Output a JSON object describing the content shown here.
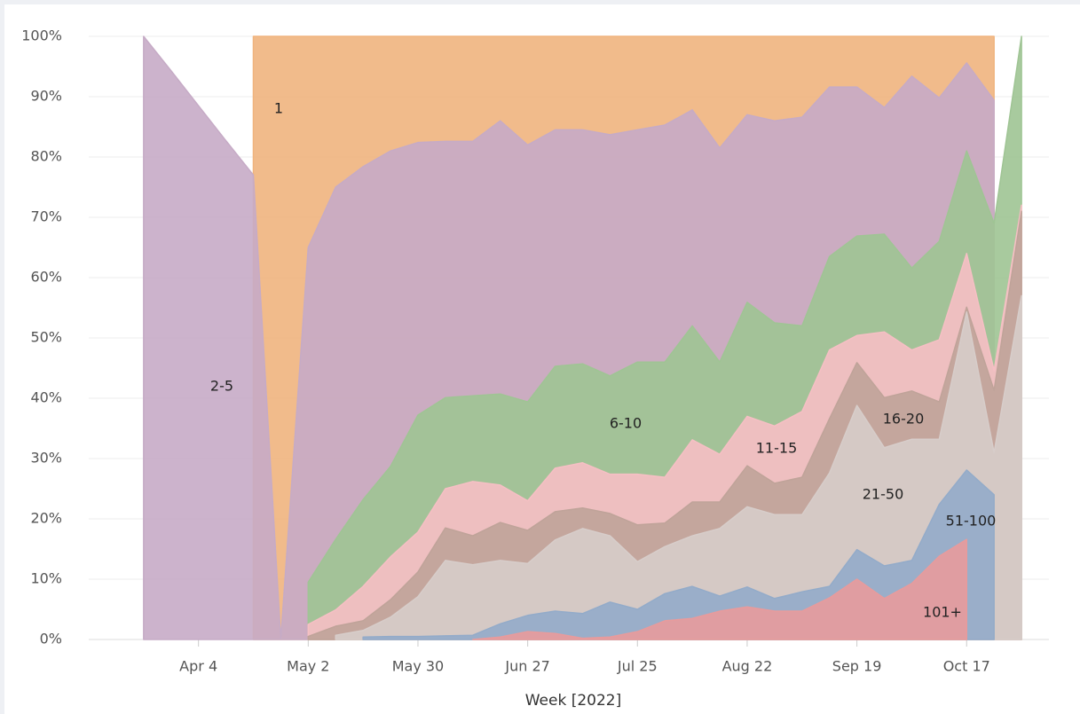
{
  "chart_data": {
    "type": "area",
    "x_label": "Week [2022]",
    "x": [
      "2022-03-21",
      "2022-03-28",
      "2022-04-04",
      "2022-04-11",
      "2022-04-18",
      "2022-04-25",
      "2022-05-02",
      "2022-05-09",
      "2022-05-16",
      "2022-05-23",
      "2022-05-30",
      "2022-06-06",
      "2022-06-13",
      "2022-06-20",
      "2022-06-27",
      "2022-07-04",
      "2022-07-11",
      "2022-07-18",
      "2022-07-25",
      "2022-08-01",
      "2022-08-08",
      "2022-08-15",
      "2022-08-22",
      "2022-08-29",
      "2022-09-05",
      "2022-09-12",
      "2022-09-19",
      "2022-09-26",
      "2022-10-03",
      "2022-10-10",
      "2022-10-17",
      "2022-10-24",
      "2022-10-31"
    ],
    "xlim": [
      "2022-03-07",
      "2022-11-07"
    ],
    "xticks": [
      {
        "value": "2022-04-04",
        "label": "Apr 4"
      },
      {
        "value": "2022-05-02",
        "label": "May 2"
      },
      {
        "value": "2022-05-30",
        "label": "May 30"
      },
      {
        "value": "2022-06-27",
        "label": "Jun 27"
      },
      {
        "value": "2022-07-25",
        "label": "Jul 25"
      },
      {
        "value": "2022-08-22",
        "label": "Aug 22"
      },
      {
        "value": "2022-09-19",
        "label": "Sep 19"
      },
      {
        "value": "2022-10-17",
        "label": "Oct 17"
      }
    ],
    "ylim": [
      0,
      100
    ],
    "yticks": [
      {
        "value": 0,
        "label": "0%"
      },
      {
        "value": 10,
        "label": "10%"
      },
      {
        "value": 20,
        "label": "20%"
      },
      {
        "value": 30,
        "label": "30%"
      },
      {
        "value": 40,
        "label": "40%"
      },
      {
        "value": 50,
        "label": "50%"
      },
      {
        "value": 60,
        "label": "60%"
      },
      {
        "value": 70,
        "label": "70%"
      },
      {
        "value": 80,
        "label": "80%"
      },
      {
        "value": 90,
        "label": "90%"
      },
      {
        "value": 100,
        "label": "100%"
      }
    ],
    "grid": true,
    "series": [
      {
        "name": "1",
        "color": "#f0b47e",
        "values": [
          null,
          null,
          null,
          null,
          100,
          100,
          100,
          100,
          100,
          100,
          100,
          100,
          100,
          100,
          100,
          100,
          100,
          100,
          100,
          100,
          100,
          100,
          100,
          100,
          100,
          100,
          100,
          100,
          100,
          100,
          100,
          100,
          null
        ]
      },
      {
        "name": "2-5",
        "color": "#c6abc6",
        "values": [
          100,
          94.3,
          88.5,
          82.7,
          77,
          0,
          65,
          75,
          78.4,
          81,
          82.4,
          82.6,
          82.6,
          86,
          82,
          84.5,
          84.5,
          83.7,
          84.5,
          85.3,
          87.8,
          81.5,
          87,
          86,
          86.6,
          91.6,
          91.6,
          88.2,
          93.4,
          89.8,
          95.6,
          89.4,
          null
        ]
      },
      {
        "name": "6-10",
        "color": "#9fc494",
        "values": [
          null,
          null,
          null,
          null,
          null,
          null,
          9.5,
          16.6,
          23.2,
          28.7,
          37.2,
          40.1,
          40.4,
          40.7,
          39.4,
          45.3,
          45.7,
          43.7,
          46,
          46,
          52,
          46,
          55.9,
          52.5,
          52,
          63.5,
          66.9,
          67.2,
          61.6,
          66,
          81,
          69,
          100
        ]
      },
      {
        "name": "11-15",
        "color": "#f6bfc4",
        "values": [
          null,
          null,
          null,
          null,
          null,
          null,
          2.5,
          4.9,
          8.8,
          13.7,
          17.8,
          25,
          26.2,
          25.6,
          23,
          28.4,
          29.3,
          27.4,
          27.4,
          26.9,
          33.1,
          30.7,
          37,
          35.4,
          37.8,
          48,
          50.4,
          51,
          48,
          49.7,
          64,
          44.6,
          72
        ]
      },
      {
        "name": "16-20",
        "color": "#bfa399",
        "values": [
          null,
          null,
          null,
          null,
          null,
          null,
          0.5,
          2.2,
          3.1,
          6.6,
          11.2,
          18.5,
          17.2,
          19.4,
          18.1,
          21.2,
          21.8,
          20.9,
          19,
          19.3,
          22.8,
          22.8,
          28.8,
          25.9,
          26.9,
          36.6,
          45.9,
          40.1,
          41.2,
          39.4,
          55.1,
          41.3,
          71
        ]
      },
      {
        "name": "21-50",
        "color": "#d7cdca",
        "values": [
          null,
          null,
          null,
          null,
          null,
          null,
          null,
          0.7,
          1.5,
          3.7,
          7.1,
          13.1,
          12.4,
          13.1,
          12.6,
          16.5,
          18.4,
          17.2,
          12.9,
          15.4,
          17.2,
          18.4,
          22,
          20.7,
          20.7,
          27.6,
          38.8,
          31.8,
          33.2,
          33.2,
          54.3,
          31,
          57
        ]
      },
      {
        "name": "51-100",
        "color": "#93abc9",
        "values": [
          null,
          null,
          null,
          null,
          null,
          null,
          null,
          null,
          0.4,
          0.5,
          0.5,
          0.6,
          0.7,
          2.6,
          4,
          4.7,
          4.3,
          6.2,
          5,
          7.6,
          8.8,
          7.2,
          8.7,
          6.8,
          7.9,
          8.8,
          14.9,
          12.2,
          13.1,
          22.4,
          28.1,
          24,
          null
        ]
      },
      {
        "name": "101+",
        "color": "#e89b9c",
        "values": [
          null,
          null,
          null,
          null,
          null,
          null,
          null,
          null,
          null,
          null,
          null,
          null,
          0,
          0.4,
          1.3,
          1,
          0.2,
          0.4,
          1.3,
          3.1,
          3.5,
          4.7,
          5.4,
          4.7,
          4.7,
          6.9,
          10,
          6.8,
          9.3,
          13.8,
          16.6,
          null,
          null
        ]
      }
    ]
  }
}
